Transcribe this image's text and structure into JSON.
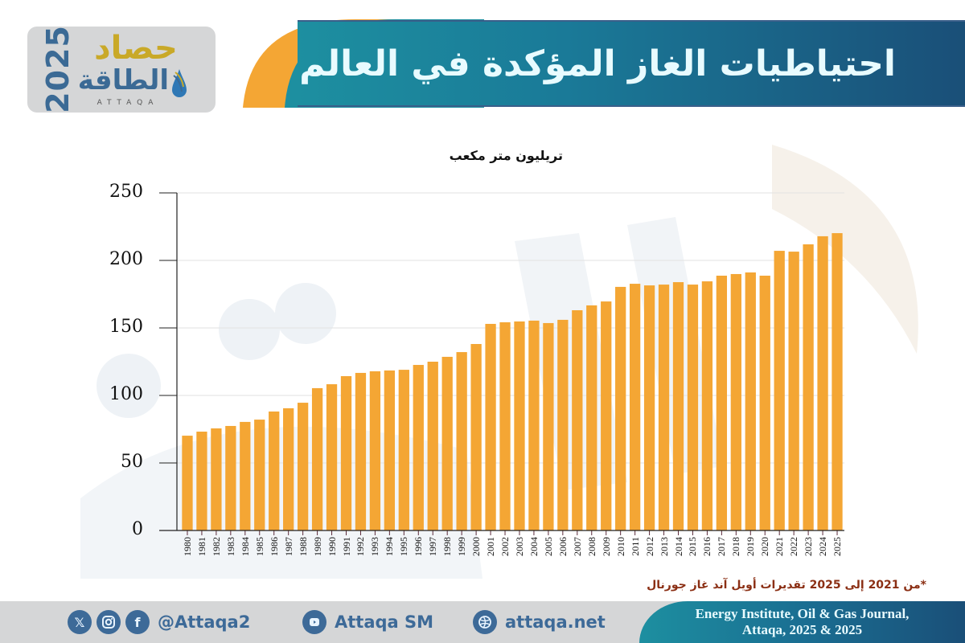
{
  "header": {
    "title": "احتياطيات الغاز المؤكدة في العالم"
  },
  "logo": {
    "year": "2025",
    "word_top": "حصاد",
    "word_bottom": "الطاقة",
    "latin": "ATTAQA"
  },
  "colors": {
    "bar": "#f4a634",
    "banner_start": "#1d8fa0",
    "banner_end": "#1a4f78",
    "logo_gold": "#c9a928",
    "logo_blue": "#3b6a95",
    "note_red": "#8b2f14",
    "footer_gray": "#d5d6d7"
  },
  "chart_data": {
    "type": "bar",
    "title": "احتياطيات الغاز المؤكدة في العالم",
    "ylabel": "تريليون متر مكعب",
    "xlabel": "",
    "ylim": [
      0,
      250
    ],
    "yticks": [
      0,
      50,
      100,
      150,
      200,
      250
    ],
    "grid": true,
    "categories": [
      "1980",
      "1981",
      "1982",
      "1983",
      "1984",
      "1985",
      "1986",
      "1987",
      "1988",
      "1989",
      "1990",
      "1991",
      "1992",
      "1993",
      "1994",
      "1995",
      "1996",
      "1997",
      "1998",
      "1999",
      "2000",
      "2001",
      "2002",
      "2003",
      "2004",
      "2005",
      "2006",
      "2007",
      "2008",
      "2009",
      "2010",
      "2011",
      "2012",
      "2013",
      "2014",
      "2015",
      "2016",
      "2017",
      "2018",
      "2019",
      "2020",
      "2021",
      "2022",
      "2023",
      "2024",
      "2025"
    ],
    "values": [
      70.2,
      73.2,
      75.6,
      77.4,
      80.4,
      82.1,
      88.1,
      90.5,
      94.6,
      105.4,
      108.3,
      114.3,
      116.7,
      117.9,
      118.5,
      119.0,
      122.6,
      125.0,
      128.6,
      132.1,
      138.1,
      153.0,
      154.2,
      154.8,
      155.4,
      153.6,
      156.0,
      163.1,
      166.7,
      169.6,
      180.4,
      182.7,
      181.5,
      182.1,
      183.9,
      182.1,
      184.5,
      188.7,
      189.9,
      191.1,
      188.7,
      207.1,
      206.5,
      211.9,
      217.9,
      220.2
    ],
    "annotations": [
      "*من 2021 إلى 2025 تقديرات أويل آند غاز جورنال"
    ]
  },
  "note": {
    "text": "*من 2021 إلى 2025 تقديرات أويل آند غاز جورنال"
  },
  "footer": {
    "social_handle": "@Attaqa2",
    "youtube": "Attaqa SM",
    "website": "attaqa.net",
    "source_line1": "Energy Institute, Oil & Gas Journal,",
    "source_line2": "Attaqa, 2025 & 2025",
    "icons": [
      "x-icon",
      "instagram-icon",
      "facebook-icon",
      "youtube-icon",
      "globe-icon"
    ]
  }
}
